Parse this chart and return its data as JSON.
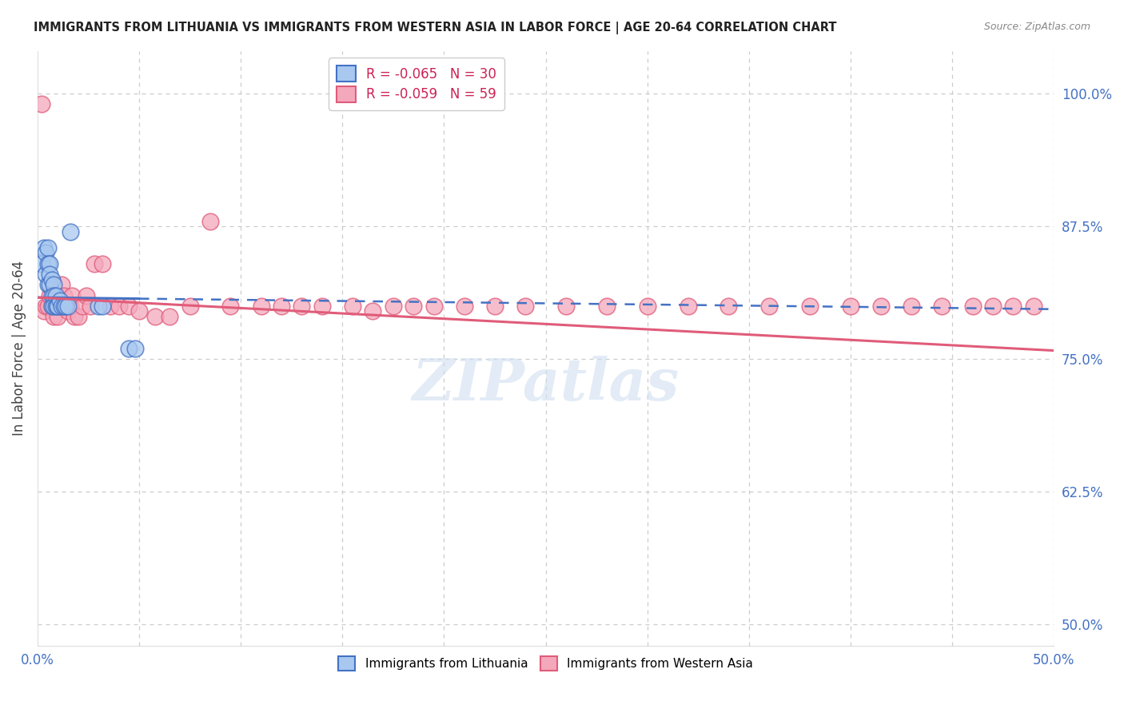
{
  "title": "IMMIGRANTS FROM LITHUANIA VS IMMIGRANTS FROM WESTERN ASIA IN LABOR FORCE | AGE 20-64 CORRELATION CHART",
  "source": "Source: ZipAtlas.com",
  "ylabel": "In Labor Force | Age 20-64",
  "xlim": [
    0.0,
    0.5
  ],
  "ylim": [
    0.48,
    1.04
  ],
  "xticks": [
    0.0,
    0.05,
    0.1,
    0.15,
    0.2,
    0.25,
    0.3,
    0.35,
    0.4,
    0.45,
    0.5
  ],
  "yticks_right": [
    0.5,
    0.625,
    0.75,
    0.875,
    1.0
  ],
  "yticks_right_labels": [
    "50.0%",
    "62.5%",
    "75.0%",
    "87.5%",
    "100.0%"
  ],
  "legend_r1": "R = -0.065",
  "legend_n1": "N = 30",
  "legend_r2": "R = -0.059",
  "legend_n2": "N = 59",
  "lithuania_color": "#a8c8f0",
  "western_asia_color": "#f4a8bc",
  "trend_blue": "#4472c4",
  "trend_pink": "#e05c7a",
  "lithuania_x": [
    0.002,
    0.003,
    0.004,
    0.004,
    0.005,
    0.005,
    0.005,
    0.006,
    0.006,
    0.006,
    0.007,
    0.007,
    0.007,
    0.008,
    0.008,
    0.008,
    0.009,
    0.009,
    0.01,
    0.01,
    0.011,
    0.012,
    0.013,
    0.014,
    0.015,
    0.016,
    0.03,
    0.032,
    0.045,
    0.048
  ],
  "lithuania_y": [
    0.84,
    0.855,
    0.85,
    0.83,
    0.855,
    0.84,
    0.82,
    0.84,
    0.83,
    0.82,
    0.825,
    0.81,
    0.8,
    0.82,
    0.81,
    0.8,
    0.81,
    0.8,
    0.8,
    0.8,
    0.805,
    0.8,
    0.8,
    0.8,
    0.8,
    0.87,
    0.8,
    0.8,
    0.76,
    0.76
  ],
  "western_asia_x": [
    0.002,
    0.003,
    0.004,
    0.005,
    0.006,
    0.007,
    0.008,
    0.009,
    0.01,
    0.011,
    0.012,
    0.013,
    0.014,
    0.015,
    0.016,
    0.017,
    0.018,
    0.02,
    0.022,
    0.024,
    0.026,
    0.028,
    0.032,
    0.036,
    0.04,
    0.045,
    0.05,
    0.058,
    0.065,
    0.075,
    0.085,
    0.095,
    0.11,
    0.12,
    0.13,
    0.14,
    0.155,
    0.165,
    0.175,
    0.185,
    0.195,
    0.21,
    0.225,
    0.24,
    0.26,
    0.28,
    0.3,
    0.32,
    0.34,
    0.36,
    0.38,
    0.4,
    0.415,
    0.43,
    0.445,
    0.46,
    0.47,
    0.48,
    0.49
  ],
  "western_asia_y": [
    0.99,
    0.795,
    0.8,
    0.8,
    0.81,
    0.8,
    0.79,
    0.8,
    0.79,
    0.8,
    0.82,
    0.81,
    0.8,
    0.795,
    0.8,
    0.81,
    0.79,
    0.79,
    0.8,
    0.81,
    0.8,
    0.84,
    0.84,
    0.8,
    0.8,
    0.8,
    0.795,
    0.79,
    0.79,
    0.8,
    0.88,
    0.8,
    0.8,
    0.8,
    0.8,
    0.8,
    0.8,
    0.795,
    0.8,
    0.8,
    0.8,
    0.8,
    0.8,
    0.8,
    0.8,
    0.8,
    0.8,
    0.8,
    0.8,
    0.8,
    0.8,
    0.8,
    0.8,
    0.8,
    0.8,
    0.8,
    0.8,
    0.8,
    0.8
  ],
  "trend_lith_x0": 0.0,
  "trend_lith_x1": 0.5,
  "trend_lith_y0": 0.808,
  "trend_lith_y1": 0.797,
  "trend_lith_solid_end": 0.05,
  "trend_west_x0": 0.0,
  "trend_west_x1": 0.5,
  "trend_west_y0": 0.808,
  "trend_west_y1": 0.758
}
